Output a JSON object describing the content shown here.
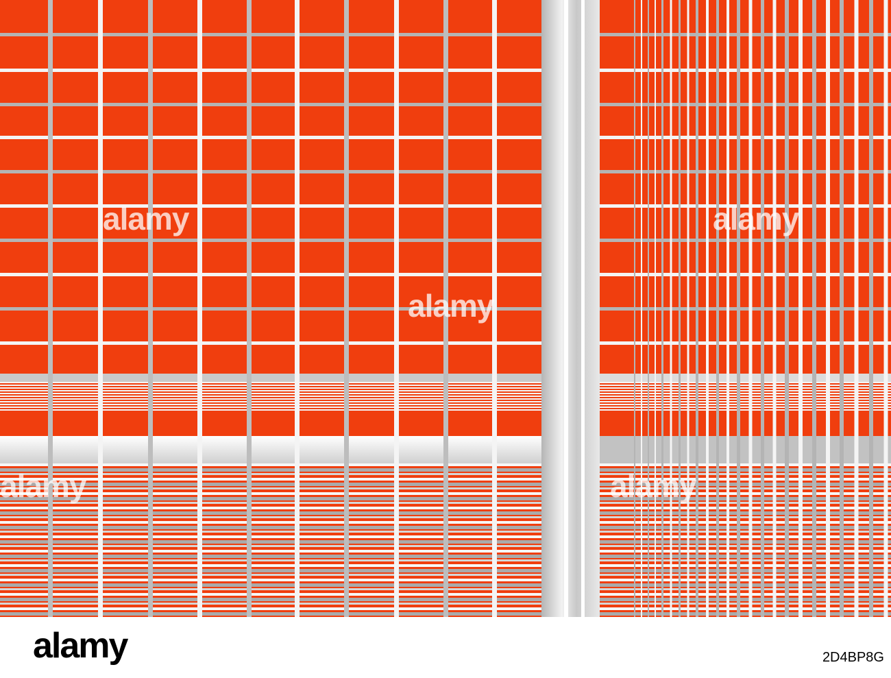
{
  "watermark": "alamy",
  "footer": {
    "logo": "alamy",
    "image_id": "2D4BP8G"
  }
}
